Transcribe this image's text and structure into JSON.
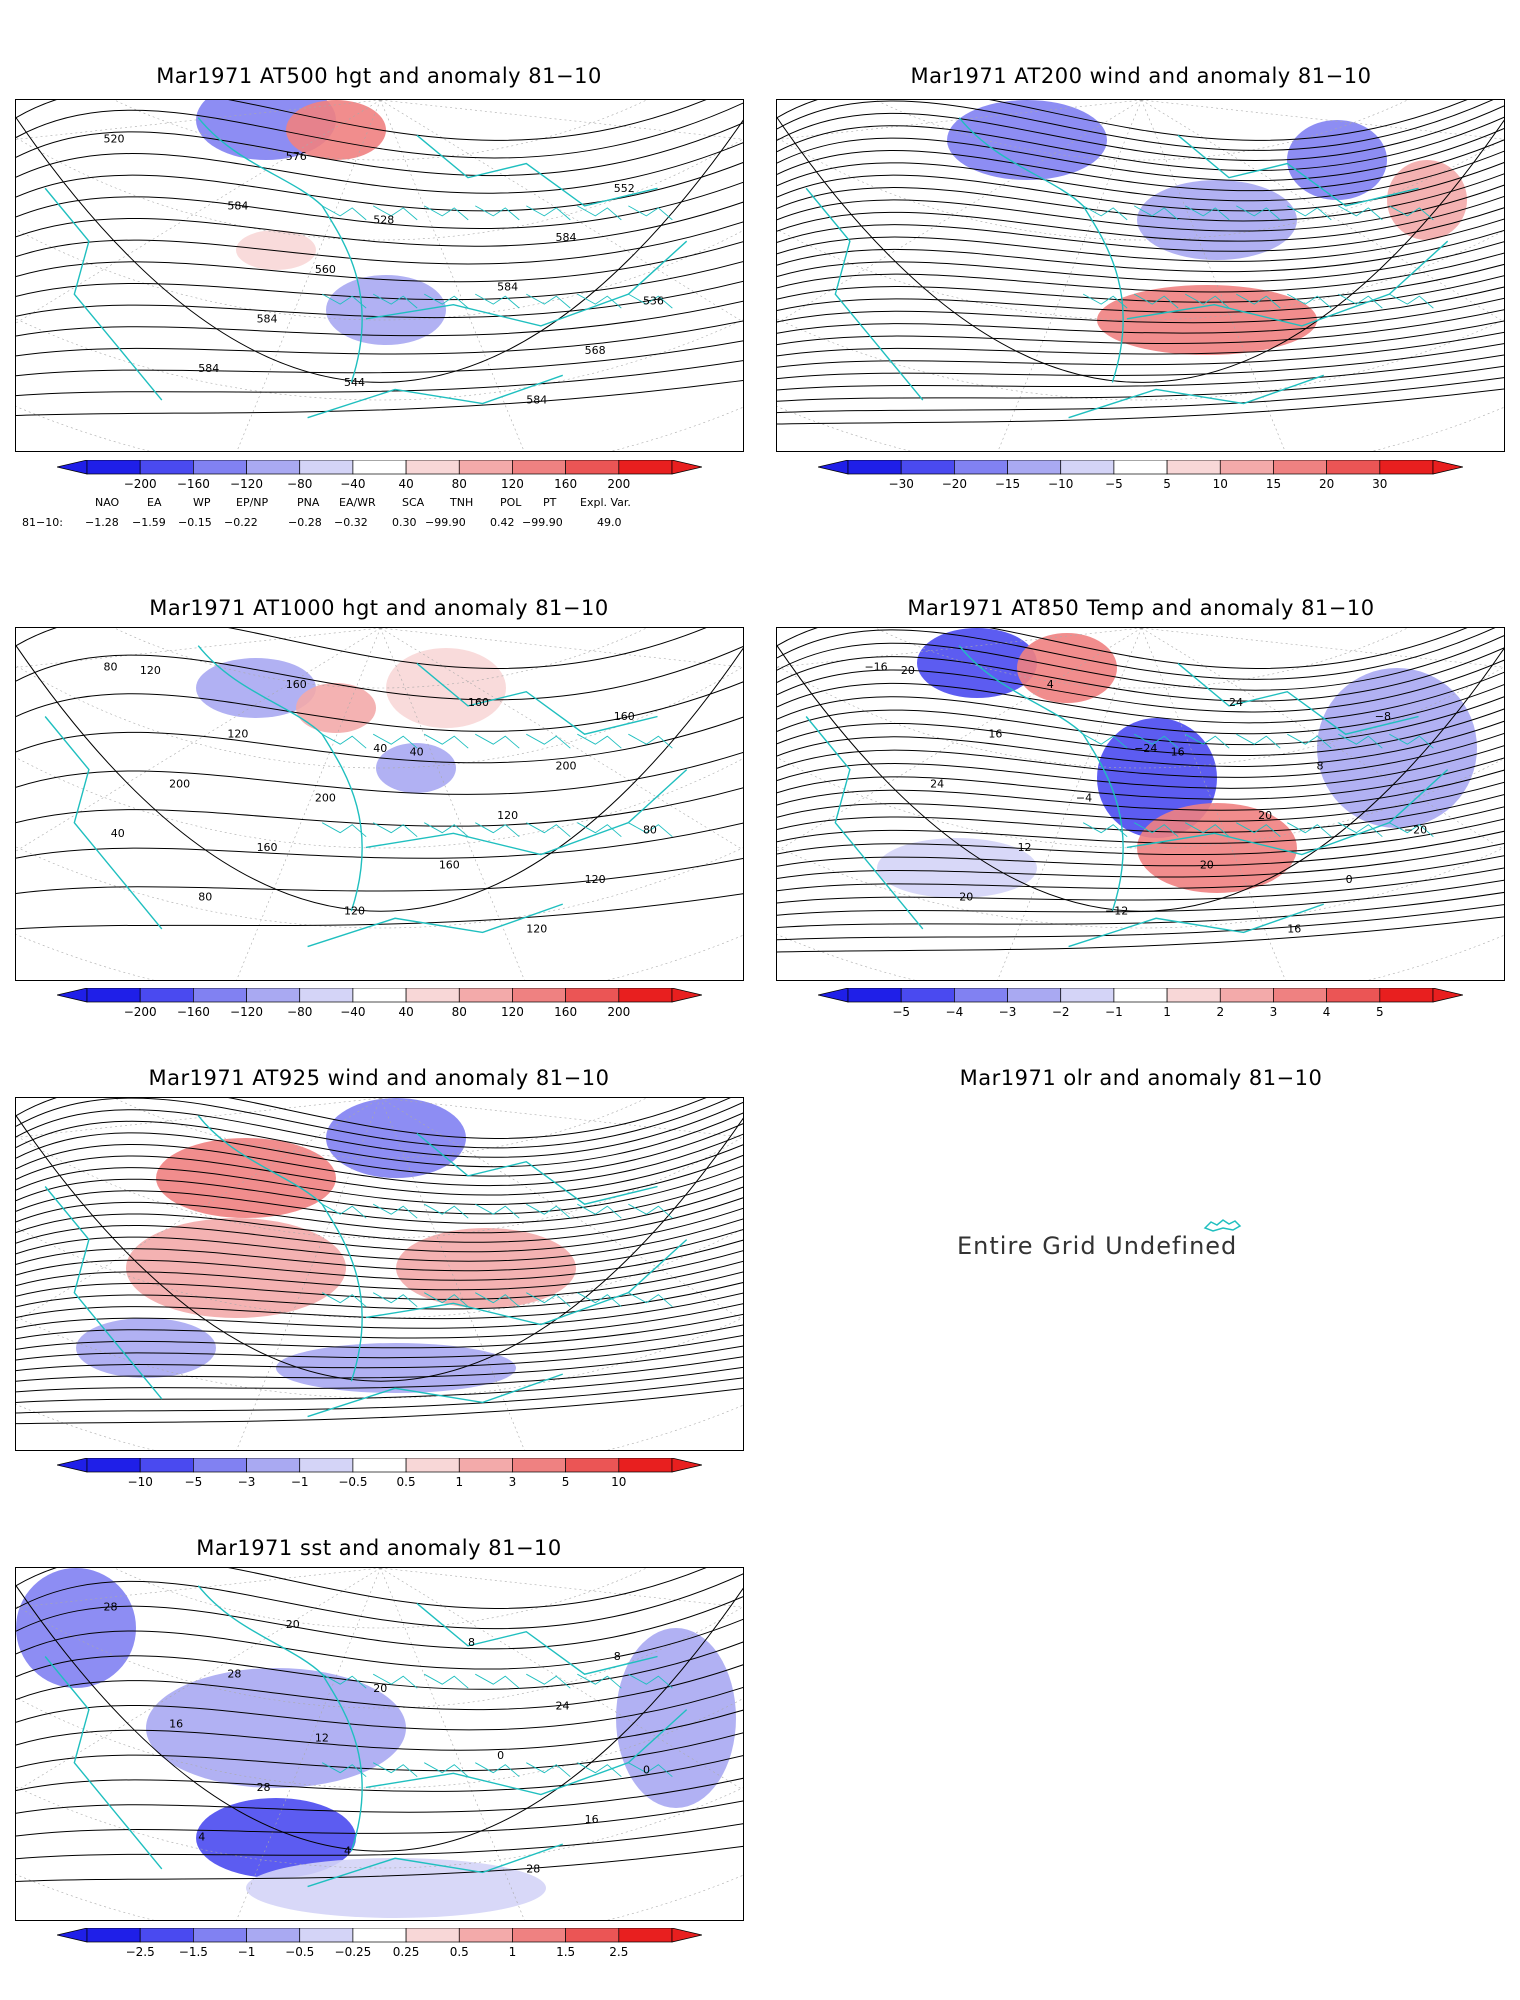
{
  "colors": {
    "blue_scale": [
      "#1f1fe8",
      "#4a4af0",
      "#8181f2",
      "#a9a9f2",
      "#d4d4f7"
    ],
    "red_scale": [
      "#f8d7d7",
      "#f3aaaa",
      "#ef8181",
      "#eb5555",
      "#e81f1f"
    ],
    "coast": "#1fbfbf",
    "contour": "#000000",
    "grid": "#aaaaaa"
  },
  "panels": [
    {
      "id": "at500",
      "title": "Mar1971 AT500 hgt and anomaly 81−10",
      "contour_labels": [
        "520",
        "528",
        "536",
        "544",
        "552",
        "560",
        "568",
        "576",
        "584",
        "584",
        "584",
        "584",
        "584",
        "584"
      ],
      "colorbar": [
        "−200",
        "−160",
        "−120",
        "−80",
        "−40",
        "40",
        "80",
        "120",
        "160",
        "200"
      ]
    },
    {
      "id": "at200",
      "title": "Mar1971 AT200 wind and anomaly 81−10",
      "contour_labels": [],
      "colorbar": [
        "−30",
        "−20",
        "−15",
        "−10",
        "−5",
        "5",
        "10",
        "15",
        "20",
        "30"
      ]
    },
    {
      "id": "at1000",
      "title": "Mar1971 AT1000 hgt and anomaly 81−10",
      "contour_labels": [
        "80",
        "40",
        "80",
        "120",
        "160",
        "200",
        "120",
        "160",
        "200",
        "160",
        "120",
        "120",
        "120",
        "80",
        "160",
        "200",
        "160",
        "120",
        "40",
        "40"
      ],
      "colorbar": [
        "−200",
        "−160",
        "−120",
        "−80",
        "−40",
        "40",
        "80",
        "120",
        "160",
        "200"
      ]
    },
    {
      "id": "at850",
      "title": "Mar1971 AT850 Temp and anomaly 81−10",
      "contour_labels": [
        "−16",
        "−24",
        "−20",
        "−12",
        "−8",
        "−4",
        "0",
        "4",
        "8",
        "12",
        "16",
        "16",
        "20",
        "20",
        "24",
        "24",
        "20",
        "20",
        "16"
      ],
      "colorbar": [
        "−5",
        "−4",
        "−3",
        "−2",
        "−1",
        "1",
        "2",
        "3",
        "4",
        "5"
      ]
    },
    {
      "id": "at925",
      "title": "Mar1971 AT925 wind and anomaly 81−10",
      "contour_labels": [],
      "colorbar": [
        "−10",
        "−5",
        "−3",
        "−1",
        "−0.5",
        "0.5",
        "1",
        "3",
        "5",
        "10"
      ]
    },
    {
      "id": "olr",
      "title": "Mar1971 olr and anomaly 81−10",
      "undefined_text": "Entire Grid Undefined"
    },
    {
      "id": "sst",
      "title": "Mar1971 sst and anomaly 81−10",
      "contour_labels": [
        "28",
        "20",
        "0",
        "4",
        "8",
        "12",
        "16",
        "20",
        "24",
        "28",
        "28",
        "28",
        "0",
        "4",
        "8",
        "16"
      ],
      "colorbar": [
        "−2.5",
        "−1.5",
        "−1",
        "−0.5",
        "−0.25",
        "0.25",
        "0.5",
        "1",
        "1.5",
        "2.5"
      ]
    }
  ],
  "indices": {
    "header": [
      "NAO",
      "EA",
      "WP",
      "EP/NP",
      "PNA",
      "EA/WR",
      "SCA",
      "TNH",
      "POL",
      "PT",
      "Expl. Var."
    ],
    "row_label": "81−10:",
    "values": [
      "−1.28",
      "−1.59",
      "−0.15",
      "−0.22",
      "−0.28",
      "−0.32",
      "0.30",
      "−99.90",
      "0.42",
      "−99.90",
      "49.0"
    ]
  }
}
